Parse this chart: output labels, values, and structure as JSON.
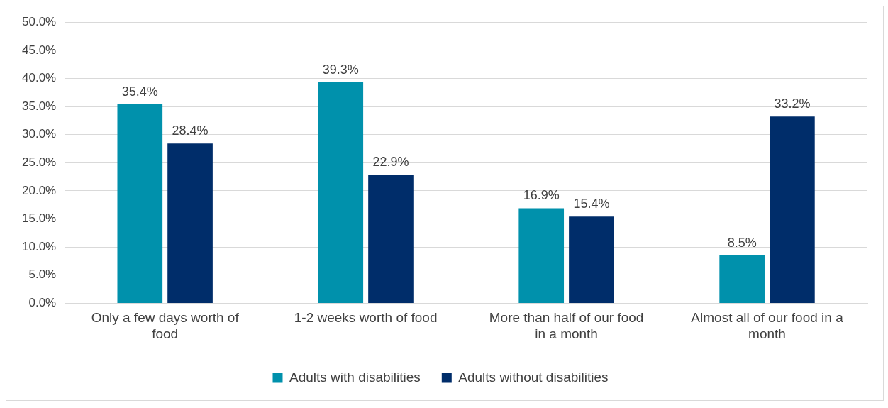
{
  "chart_data": {
    "type": "bar",
    "categories": [
      "Only a few days worth of food",
      "1-2 weeks worth of food",
      "More than half of our food in a month",
      "Almost all of our food in a month"
    ],
    "series": [
      {
        "name": "Adults with disabilities",
        "color": "#0091ac",
        "values": [
          35.4,
          39.3,
          16.9,
          8.5
        ],
        "value_labels": [
          "35.4%",
          "39.3%",
          "16.9%",
          "8.5%"
        ]
      },
      {
        "name": "Adults without disabilities",
        "color": "#002d6a",
        "values": [
          28.4,
          22.9,
          15.4,
          33.2
        ],
        "value_labels": [
          "28.4%",
          "22.9%",
          "15.4%",
          "33.2%"
        ]
      }
    ],
    "ylim": [
      0,
      50
    ],
    "yticks": [
      {
        "value": 0,
        "label": "0.0%"
      },
      {
        "value": 5,
        "label": "5.0%"
      },
      {
        "value": 10,
        "label": "10.0%"
      },
      {
        "value": 15,
        "label": "15.0%"
      },
      {
        "value": 20,
        "label": "20.0%"
      },
      {
        "value": 25,
        "label": "25.0%"
      },
      {
        "value": 30,
        "label": "30.0%"
      },
      {
        "value": 35,
        "label": "35.0%"
      },
      {
        "value": 40,
        "label": "40.0%"
      },
      {
        "value": 45,
        "label": "45.0%"
      },
      {
        "value": 50,
        "label": "50.0%"
      }
    ],
    "grid": "y",
    "legend": "bottom"
  }
}
